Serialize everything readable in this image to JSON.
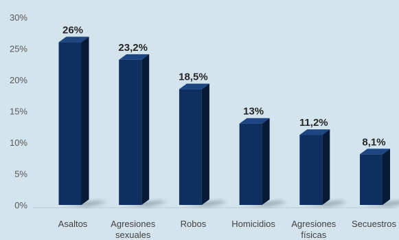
{
  "chart_data": {
    "type": "bar",
    "title": "",
    "xlabel": "",
    "ylabel": "",
    "ylim": [
      0,
      30
    ],
    "yticks": [
      "0%",
      "5%",
      "10%",
      "15%",
      "20%",
      "25%",
      "30%"
    ],
    "categories": [
      "Asaltos",
      "Agresiones sexuales",
      "Robos",
      "Homicidios",
      "Agresiones físicas",
      "Secuestros"
    ],
    "category_lines": [
      [
        "Asaltos"
      ],
      [
        "Agresiones",
        "sexuales"
      ],
      [
        "Robos"
      ],
      [
        "Homicidios"
      ],
      [
        "Agresiones",
        "físicas"
      ],
      [
        "Secuestros"
      ]
    ],
    "values": [
      26,
      23.2,
      18.5,
      13,
      11.2,
      8.1
    ],
    "data_labels": [
      "26%",
      "23,2%",
      "18,5%",
      "13%",
      "11,2%",
      "8,1%"
    ],
    "grid": false,
    "legend": "none",
    "style": "3d-column"
  },
  "colors": {
    "background": "#d4e4ec",
    "bar_front": "#0f2f60",
    "bar_side": "#071a36",
    "bar_top": "#1d4682"
  }
}
